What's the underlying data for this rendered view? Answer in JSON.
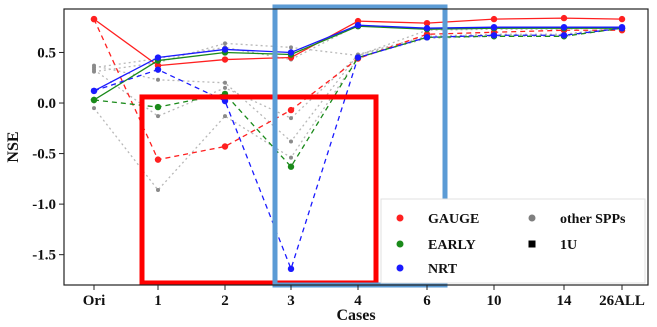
{
  "chart_data": {
    "type": "line",
    "xlabel": "Cases",
    "ylabel": "NSE",
    "categories": [
      "Ori",
      "1",
      "2",
      "3",
      "4",
      "6",
      "10",
      "14",
      "26ALL"
    ],
    "yticks": [
      "0.5",
      "0.0",
      "-0.5",
      "-1.0",
      "-1.5"
    ],
    "ylim": [
      -1.8,
      0.93
    ],
    "grid": false,
    "series": [
      {
        "name": "GAUGE",
        "color": "#ff2020",
        "variant": "other SPPs",
        "values": [
          0.83,
          -0.56,
          -0.43,
          -0.07,
          0.44,
          0.68,
          0.7,
          0.72,
          0.72
        ]
      },
      {
        "name": "GAUGE",
        "color": "#ff2020",
        "variant": "1U",
        "values": [
          0.83,
          0.37,
          0.43,
          0.45,
          0.81,
          0.79,
          0.83,
          0.84,
          0.83
        ]
      },
      {
        "name": "EARLY",
        "color": "#1a8a1a",
        "variant": "other SPPs",
        "values": [
          0.03,
          -0.04,
          0.09,
          -0.63,
          0.45,
          0.65,
          0.66,
          0.66,
          0.74
        ]
      },
      {
        "name": "EARLY",
        "color": "#1a8a1a",
        "variant": "1U",
        "values": [
          0.03,
          0.42,
          0.5,
          0.48,
          0.76,
          0.73,
          0.74,
          0.74,
          0.74
        ]
      },
      {
        "name": "NRT",
        "color": "#1a1aff",
        "variant": "other SPPs",
        "values": [
          0.12,
          0.33,
          0.02,
          -1.64,
          0.45,
          0.65,
          0.67,
          0.67,
          0.74
        ]
      },
      {
        "name": "NRT",
        "color": "#1a1aff",
        "variant": "1U",
        "values": [
          0.12,
          0.45,
          0.53,
          0.5,
          0.77,
          0.74,
          0.75,
          0.75,
          0.75
        ]
      }
    ],
    "other_spps_lines": [
      [
        0.37,
        0.23,
        0.2,
        -0.38,
        0.48,
        0.66,
        0.68,
        0.68,
        0.75
      ],
      [
        0.33,
        -0.13,
        0.15,
        -0.15,
        0.47,
        0.65,
        0.67,
        0.67,
        0.75
      ],
      [
        -0.05,
        -0.86,
        -0.13,
        -0.54,
        0.45,
        0.64,
        0.66,
        0.66,
        0.74
      ],
      [
        0.31,
        0.4,
        0.59,
        0.55,
        0.47,
        0.72,
        0.73,
        0.73,
        0.75
      ],
      [
        0.35,
        0.44,
        0.55,
        0.43,
        0.77,
        0.73,
        0.74,
        0.74,
        0.75
      ]
    ],
    "legend": {
      "placement": "bottom-right",
      "items": [
        {
          "label": "GAUGE",
          "color": "#ff2020",
          "marker": "circle"
        },
        {
          "label": "other SPPs",
          "color": "#7f7f7f",
          "marker": "circle"
        },
        {
          "label": "EARLY",
          "color": "#1a8a1a",
          "marker": "circle"
        },
        {
          "label": "1U",
          "color": "#000000",
          "marker": "square"
        },
        {
          "label": "NRT",
          "color": "#1a1aff",
          "marker": "circle"
        }
      ]
    },
    "highlight_boxes": [
      {
        "color": "#ff0000",
        "from_category": "1",
        "to_category": "4",
        "from_value": 0.06,
        "to_value": -1.78
      },
      {
        "color": "#5b9bd5",
        "from_category": "3",
        "to_category": "6",
        "from_value": 0.95,
        "to_value": -1.8
      }
    ]
  }
}
